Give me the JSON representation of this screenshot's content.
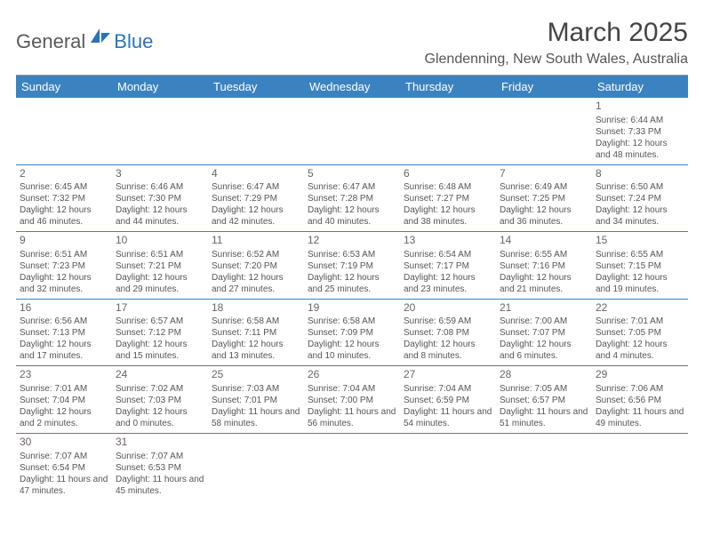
{
  "logo": {
    "part1": "General",
    "part2": "Blue"
  },
  "title": "March 2025",
  "location": "Glendenning, New South Wales, Australia",
  "colors": {
    "header_bg": "#3b83c0",
    "header_fg": "#ffffff",
    "border": "#3b83c0",
    "text": "#555"
  },
  "weekdays": [
    "Sunday",
    "Monday",
    "Tuesday",
    "Wednesday",
    "Thursday",
    "Friday",
    "Saturday"
  ],
  "weeks": [
    [
      null,
      null,
      null,
      null,
      null,
      null,
      {
        "n": "1",
        "sr": "6:44 AM",
        "ss": "7:33 PM",
        "dl": "12 hours and 48 minutes."
      }
    ],
    [
      {
        "n": "2",
        "sr": "6:45 AM",
        "ss": "7:32 PM",
        "dl": "12 hours and 46 minutes."
      },
      {
        "n": "3",
        "sr": "6:46 AM",
        "ss": "7:30 PM",
        "dl": "12 hours and 44 minutes."
      },
      {
        "n": "4",
        "sr": "6:47 AM",
        "ss": "7:29 PM",
        "dl": "12 hours and 42 minutes."
      },
      {
        "n": "5",
        "sr": "6:47 AM",
        "ss": "7:28 PM",
        "dl": "12 hours and 40 minutes."
      },
      {
        "n": "6",
        "sr": "6:48 AM",
        "ss": "7:27 PM",
        "dl": "12 hours and 38 minutes."
      },
      {
        "n": "7",
        "sr": "6:49 AM",
        "ss": "7:25 PM",
        "dl": "12 hours and 36 minutes."
      },
      {
        "n": "8",
        "sr": "6:50 AM",
        "ss": "7:24 PM",
        "dl": "12 hours and 34 minutes."
      }
    ],
    [
      {
        "n": "9",
        "sr": "6:51 AM",
        "ss": "7:23 PM",
        "dl": "12 hours and 32 minutes."
      },
      {
        "n": "10",
        "sr": "6:51 AM",
        "ss": "7:21 PM",
        "dl": "12 hours and 29 minutes."
      },
      {
        "n": "11",
        "sr": "6:52 AM",
        "ss": "7:20 PM",
        "dl": "12 hours and 27 minutes."
      },
      {
        "n": "12",
        "sr": "6:53 AM",
        "ss": "7:19 PM",
        "dl": "12 hours and 25 minutes."
      },
      {
        "n": "13",
        "sr": "6:54 AM",
        "ss": "7:17 PM",
        "dl": "12 hours and 23 minutes."
      },
      {
        "n": "14",
        "sr": "6:55 AM",
        "ss": "7:16 PM",
        "dl": "12 hours and 21 minutes."
      },
      {
        "n": "15",
        "sr": "6:55 AM",
        "ss": "7:15 PM",
        "dl": "12 hours and 19 minutes."
      }
    ],
    [
      {
        "n": "16",
        "sr": "6:56 AM",
        "ss": "7:13 PM",
        "dl": "12 hours and 17 minutes."
      },
      {
        "n": "17",
        "sr": "6:57 AM",
        "ss": "7:12 PM",
        "dl": "12 hours and 15 minutes."
      },
      {
        "n": "18",
        "sr": "6:58 AM",
        "ss": "7:11 PM",
        "dl": "12 hours and 13 minutes."
      },
      {
        "n": "19",
        "sr": "6:58 AM",
        "ss": "7:09 PM",
        "dl": "12 hours and 10 minutes."
      },
      {
        "n": "20",
        "sr": "6:59 AM",
        "ss": "7:08 PM",
        "dl": "12 hours and 8 minutes."
      },
      {
        "n": "21",
        "sr": "7:00 AM",
        "ss": "7:07 PM",
        "dl": "12 hours and 6 minutes."
      },
      {
        "n": "22",
        "sr": "7:01 AM",
        "ss": "7:05 PM",
        "dl": "12 hours and 4 minutes."
      }
    ],
    [
      {
        "n": "23",
        "sr": "7:01 AM",
        "ss": "7:04 PM",
        "dl": "12 hours and 2 minutes."
      },
      {
        "n": "24",
        "sr": "7:02 AM",
        "ss": "7:03 PM",
        "dl": "12 hours and 0 minutes."
      },
      {
        "n": "25",
        "sr": "7:03 AM",
        "ss": "7:01 PM",
        "dl": "11 hours and 58 minutes."
      },
      {
        "n": "26",
        "sr": "7:04 AM",
        "ss": "7:00 PM",
        "dl": "11 hours and 56 minutes."
      },
      {
        "n": "27",
        "sr": "7:04 AM",
        "ss": "6:59 PM",
        "dl": "11 hours and 54 minutes."
      },
      {
        "n": "28",
        "sr": "7:05 AM",
        "ss": "6:57 PM",
        "dl": "11 hours and 51 minutes."
      },
      {
        "n": "29",
        "sr": "7:06 AM",
        "ss": "6:56 PM",
        "dl": "11 hours and 49 minutes."
      }
    ],
    [
      {
        "n": "30",
        "sr": "7:07 AM",
        "ss": "6:54 PM",
        "dl": "11 hours and 47 minutes."
      },
      {
        "n": "31",
        "sr": "7:07 AM",
        "ss": "6:53 PM",
        "dl": "11 hours and 45 minutes."
      },
      null,
      null,
      null,
      null,
      null
    ]
  ]
}
